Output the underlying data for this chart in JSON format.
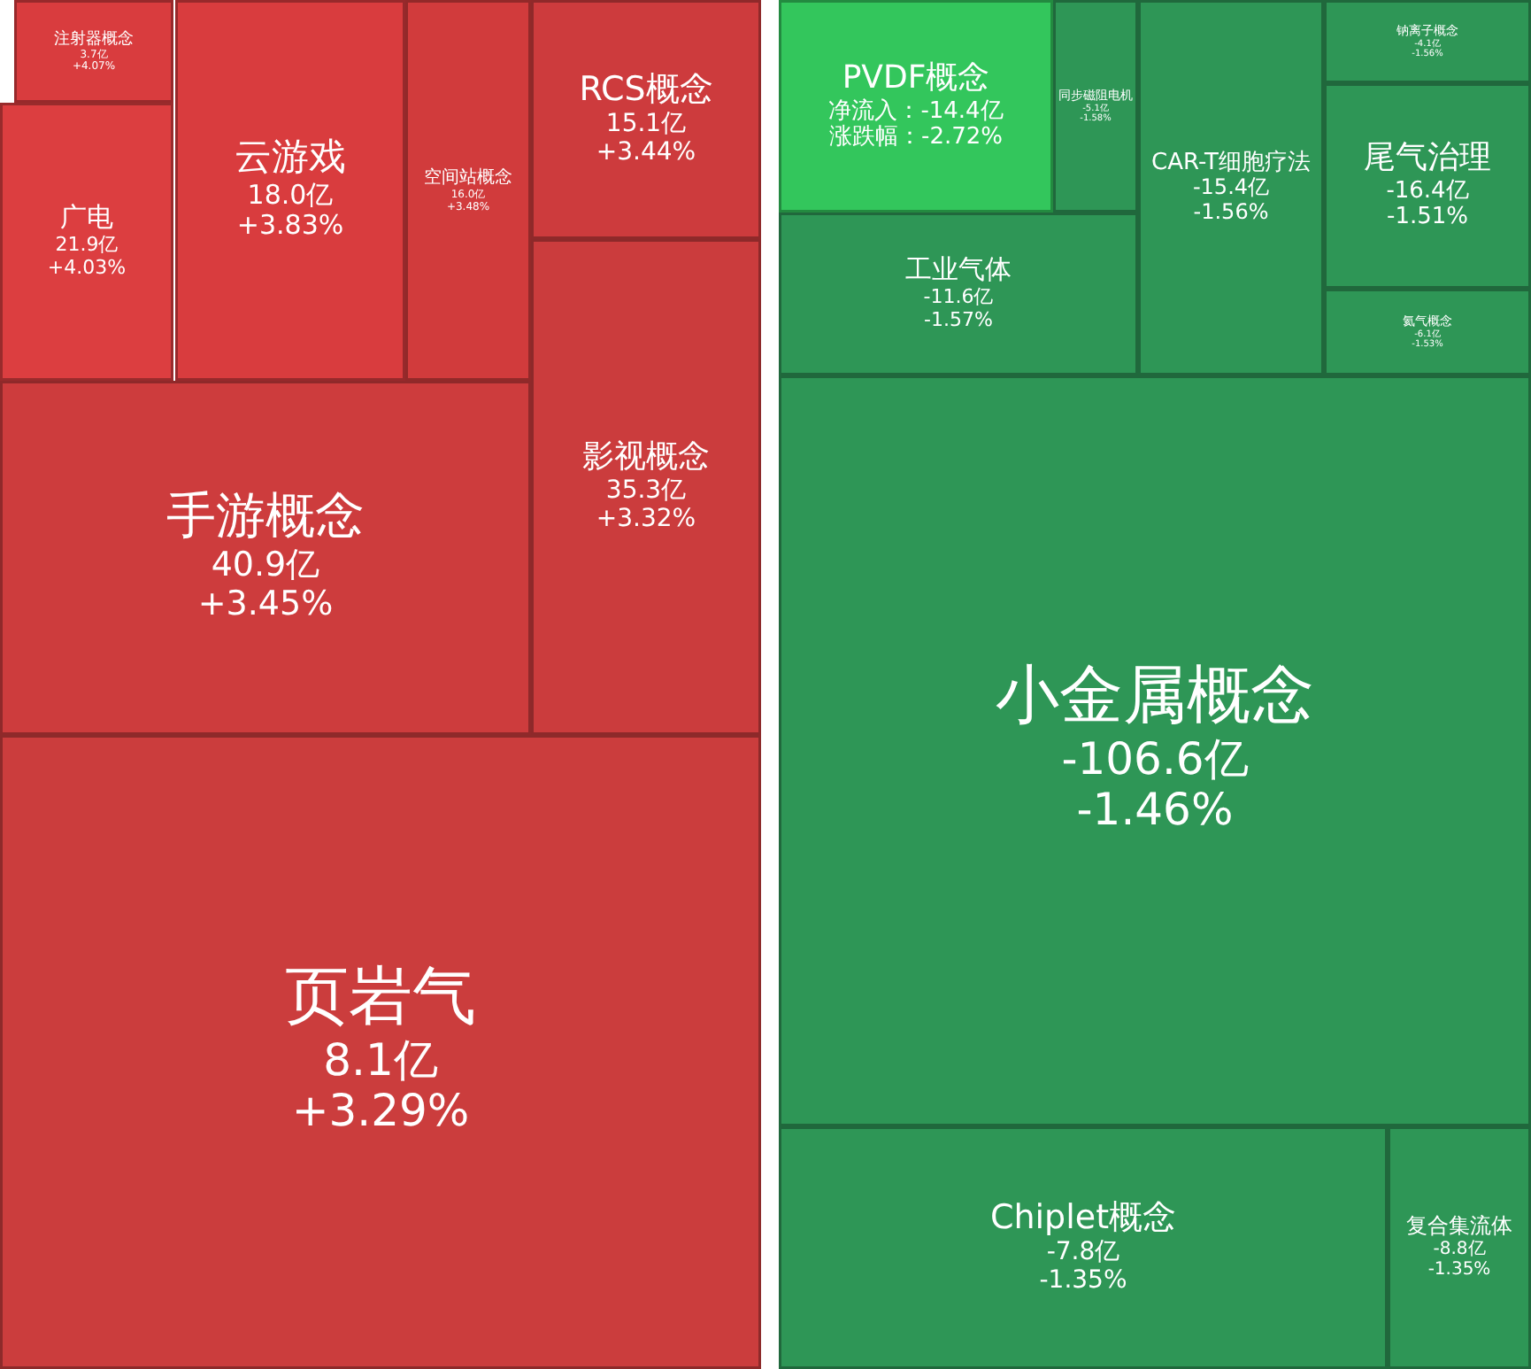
{
  "chart_data": [
    {
      "type": "other",
      "categories": [
        "注射器概念",
        "广电",
        "云游戏",
        "空间站概念",
        "RCS概念",
        "影视概念",
        "手游概念",
        "页岩气"
      ],
      "series": [
        {
          "colors": [
            "#d93c3e",
            "#dc3e40",
            "#d93c3e",
            "#d13b3c",
            "#cd3b3d",
            "#cb3c3d",
            "#cd3c3d",
            "#cb3d3d"
          ],
          "values": [
            3.7,
            21.9,
            18.0,
            16.0,
            15.1,
            35.3,
            40.9,
            8.1
          ],
          "value_labels": [
            "3.7亿",
            "21.9亿",
            "18.0亿",
            "16.0亿",
            "15.1亿",
            "35.3亿",
            "40.9亿",
            "8.1亿"
          ]
        },
        {
          "values": [
            4.07,
            4.03,
            3.83,
            3.48,
            3.44,
            3.32,
            3.45,
            3.29
          ],
          "value_labels": [
            "+4.07%",
            "+4.03%",
            "+3.83%",
            "+3.48%",
            "+3.44%",
            "+3.32%",
            "+3.45%",
            "+3.29%"
          ]
        }
      ]
    },
    {
      "type": "other",
      "categories": [
        "PVDF概念",
        "同步磁阻电机",
        "工业气体",
        "CAR-T细胞疗法",
        "钠离子概念",
        "尾气治理",
        "氦气概念",
        "小金属概念",
        "Chiplet概念",
        "复合集流体"
      ],
      "series": [
        {
          "colors": [
            "#33c65c",
            "#2e9656",
            "#2e9656",
            "#2e9656",
            "#2e9656",
            "#2e9656",
            "#2e9656",
            "#2e9656",
            "#2e9656",
            "#2e9656"
          ],
          "values": [
            -14.4,
            -5.1,
            -11.6,
            -15.4,
            -4.1,
            -16.4,
            -6.1,
            -106.6,
            -7.8,
            -8.8
          ],
          "value_labels": [
            "净流入：-14.4亿",
            "-5.1亿",
            "-11.6亿",
            "-15.4亿",
            "-4.1亿",
            "-16.4亿",
            "-6.1亿",
            "-106.6亿",
            "-7.8亿",
            "-8.8亿"
          ]
        },
        {
          "values": [
            -2.72,
            -1.58,
            -1.57,
            -1.56,
            -1.56,
            -1.51,
            -1.53,
            -1.46,
            -1.35,
            -1.35
          ],
          "value_labels": [
            "涨跌幅：-2.72%",
            "-1.58%",
            "-1.57%",
            "-1.56%",
            "-1.56%",
            "-1.51%",
            "-1.53%",
            "-1.46%",
            "-1.35%",
            "-1.35%"
          ]
        }
      ]
    }
  ]
}
